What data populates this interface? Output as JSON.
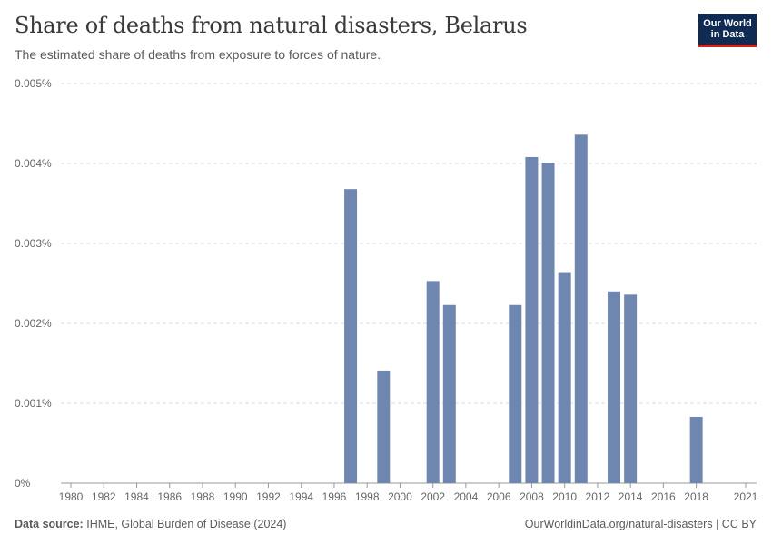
{
  "header": {
    "title": "Share of deaths from natural disasters, Belarus",
    "subtitle": "The estimated share of deaths from exposure to forces of nature."
  },
  "logo": {
    "line1": "Our World",
    "line2": "in Data"
  },
  "footer": {
    "source_label": "Data source:",
    "source_text": "IHME, Global Burden of Disease (2024)",
    "link": "OurWorldinData.org/natural-disasters | CC BY"
  },
  "colors": {
    "bar": "#6f87b0",
    "grid": "#dddddd",
    "axis": "#999999"
  },
  "chart_data": {
    "type": "bar",
    "title": "Share of deaths from natural disasters, Belarus",
    "xlabel": "",
    "ylabel": "",
    "ylim": [
      0,
      0.005
    ],
    "xlim": [
      1980,
      2021
    ],
    "y_ticks": [
      "0%",
      "0.001%",
      "0.002%",
      "0.003%",
      "0.004%",
      "0.005%"
    ],
    "y_tick_values": [
      0,
      0.001,
      0.002,
      0.003,
      0.004,
      0.005
    ],
    "x_ticks": [
      "1980",
      "1982",
      "1984",
      "1986",
      "1988",
      "1990",
      "1992",
      "1994",
      "1996",
      "1998",
      "2000",
      "2002",
      "2004",
      "2006",
      "2008",
      "2010",
      "2012",
      "2014",
      "2016",
      "2018",
      "2021"
    ],
    "series": [
      {
        "name": "Belarus",
        "years": [
          1997,
          1999,
          2002,
          2003,
          2007,
          2008,
          2009,
          2010,
          2011,
          2013,
          2014,
          2018
        ],
        "values": [
          0.00368,
          0.00141,
          0.00253,
          0.00223,
          0.00223,
          0.00408,
          0.00401,
          0.00263,
          0.00436,
          0.0024,
          0.00236,
          0.00083
        ]
      }
    ]
  }
}
